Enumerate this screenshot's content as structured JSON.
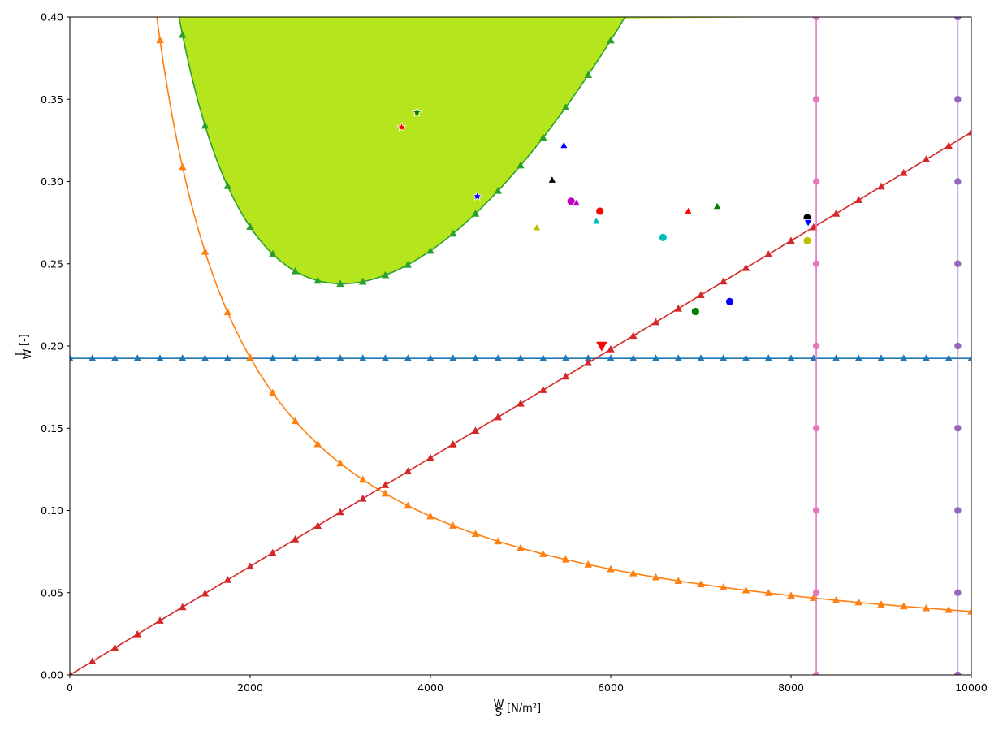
{
  "chart_data": {
    "type": "line",
    "xlabel": {
      "frac_num": "W",
      "frac_den": "S",
      "unit": "[N/m²]"
    },
    "ylabel": {
      "frac_num": "T",
      "frac_den": "W",
      "unit": "[-]"
    },
    "xlim": [
      0,
      10000
    ],
    "ylim": [
      0,
      0.4
    ],
    "xticks": [
      0,
      2000,
      4000,
      6000,
      8000,
      10000
    ],
    "yticks": [
      0.0,
      0.05,
      0.1,
      0.15,
      0.2,
      0.25,
      0.3,
      0.35,
      0.4
    ],
    "xtick_labels": [
      "0",
      "2000",
      "4000",
      "6000",
      "8000",
      "10000"
    ],
    "ytick_labels": [
      "0.00",
      "0.05",
      "0.10",
      "0.15",
      "0.20",
      "0.25",
      "0.30",
      "0.35",
      "0.40"
    ],
    "grid": false,
    "colors": {
      "blue": "#1f77b4",
      "orange": "#ff7f0e",
      "green": "#2ca02c",
      "red": "#d62728",
      "pink": "#e377c2",
      "purple": "#9467bd",
      "feasible_fill": "#b5e61d"
    },
    "series": [
      {
        "kind": "hline",
        "color": "#1f77b4",
        "marker": "triangle",
        "y": 0.1925,
        "x_step": 250
      },
      {
        "kind": "inverse",
        "color": "#ff7f0e",
        "marker": "triangle",
        "k": 386,
        "x_start": 250,
        "x_step": 250,
        "x_end": 10000
      },
      {
        "kind": "quadratic",
        "color": "#2ca02c",
        "marker": "triangle",
        "a": 0.011,
        "b": 456.5,
        "c": 8.3e-09,
        "x_start": 1250,
        "x_step": 250,
        "x_end": 10000
      },
      {
        "kind": "linear",
        "color": "#d62728",
        "marker": "triangle",
        "m": 3.3e-05,
        "x_start": 0,
        "x_step": 250,
        "x_end": 10000
      },
      {
        "kind": "vline",
        "color": "#e377c2",
        "marker": "circle",
        "x": 8280,
        "y_step": 0.05
      },
      {
        "kind": "vline",
        "color": "#9467bd",
        "marker": "circle",
        "x": 9850,
        "y_step": 0.05
      }
    ],
    "feasible_region": {
      "color": "#b5e61d",
      "y_min": 0.1925,
      "y_max": 0.4,
      "x_max": 8260
    },
    "points": [
      {
        "x": 3680,
        "y": 0.333,
        "color": "#ff0000",
        "marker": "star"
      },
      {
        "x": 3850,
        "y": 0.342,
        "color": "#008000",
        "marker": "star"
      },
      {
        "x": 4520,
        "y": 0.291,
        "color": "#0000ff",
        "marker": "star"
      },
      {
        "x": 5480,
        "y": 0.322,
        "color": "#0000ff",
        "marker": "triangle"
      },
      {
        "x": 5350,
        "y": 0.301,
        "color": "#000000",
        "marker": "triangle"
      },
      {
        "x": 5560,
        "y": 0.288,
        "color": "#bf00bf",
        "marker": "circle"
      },
      {
        "x": 5620,
        "y": 0.287,
        "color": "#bf00bf",
        "marker": "triangle"
      },
      {
        "x": 5880,
        "y": 0.282,
        "color": "#ff0000",
        "marker": "circle"
      },
      {
        "x": 5840,
        "y": 0.276,
        "color": "#00bfbf",
        "marker": "triangle"
      },
      {
        "x": 5180,
        "y": 0.272,
        "color": "#bfbf00",
        "marker": "triangle"
      },
      {
        "x": 6580,
        "y": 0.266,
        "color": "#00bfbf",
        "marker": "circle"
      },
      {
        "x": 6860,
        "y": 0.282,
        "color": "#ff0000",
        "marker": "triangle"
      },
      {
        "x": 7180,
        "y": 0.285,
        "color": "#008000",
        "marker": "triangle"
      },
      {
        "x": 8180,
        "y": 0.278,
        "color": "#000000",
        "marker": "circle"
      },
      {
        "x": 8190,
        "y": 0.275,
        "color": "#0000ff",
        "marker": "triangle-down"
      },
      {
        "x": 8180,
        "y": 0.264,
        "color": "#bfbf00",
        "marker": "circle"
      },
      {
        "x": 7320,
        "y": 0.227,
        "color": "#0000ff",
        "marker": "circle"
      },
      {
        "x": 6940,
        "y": 0.221,
        "color": "#008000",
        "marker": "circle"
      },
      {
        "x": 5900,
        "y": 0.2,
        "color": "#ff0000",
        "marker": "triangle-down-large"
      }
    ]
  }
}
